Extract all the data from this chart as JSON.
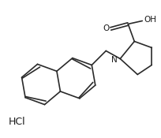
{
  "background_color": "#ffffff",
  "line_color": "#2a2a2a",
  "line_width": 1.2,
  "text_color": "#1a1a1a",
  "font_size": 7.5,
  "hcl_text": "HCl",
  "oh_text": "OH",
  "o_text": "O",
  "n_text": "N"
}
